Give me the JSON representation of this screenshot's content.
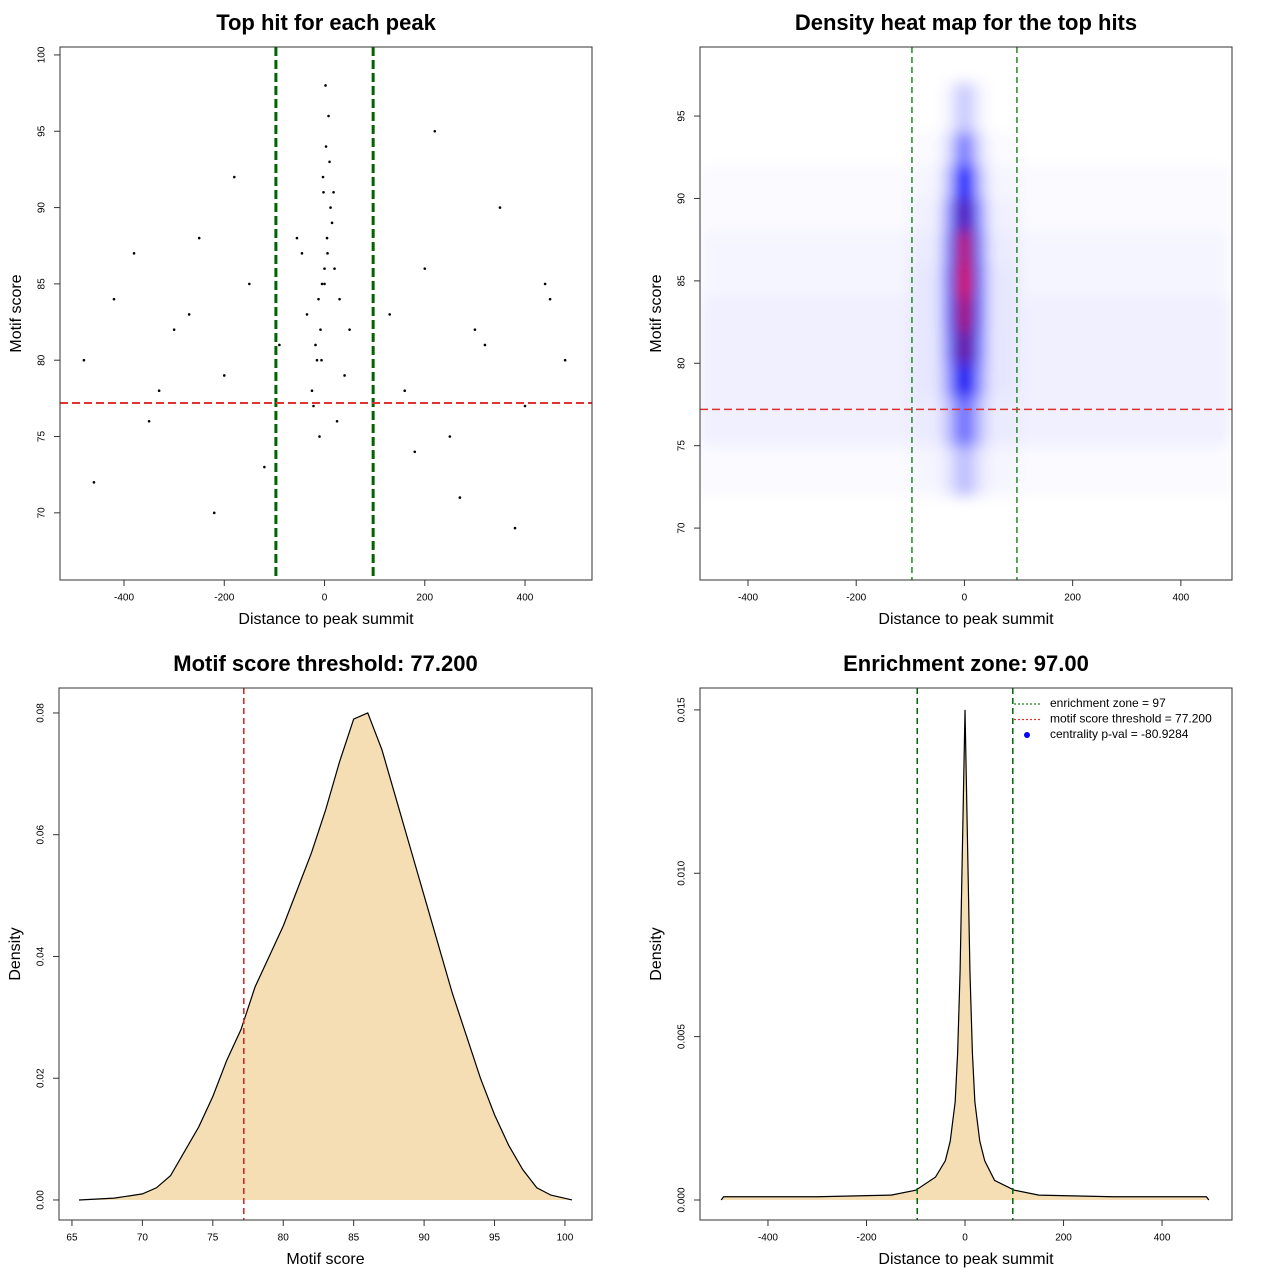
{
  "chart_data": [
    {
      "type": "scatter",
      "title": "Top hit for each peak",
      "xlabel": "Distance to peak summit",
      "ylabel": "Motif score",
      "xlim": [
        -527.7,
        533.6
      ],
      "ylim": [
        65.6,
        100.52
      ],
      "xticks": [
        -400,
        -200,
        0,
        200,
        400
      ],
      "yticks": [
        70,
        75,
        80,
        85,
        90,
        95,
        100
      ],
      "color": "#000000",
      "x": [
        0,
        5,
        -8,
        12,
        -15,
        20,
        -25,
        3,
        -3,
        30,
        -35,
        8,
        -10,
        15,
        -18,
        40,
        -45,
        2,
        -2,
        25,
        -5,
        10,
        -12,
        50,
        -55,
        6,
        -6,
        18,
        -22,
        0,
        -480,
        -420,
        -350,
        -300,
        -250,
        -200,
        -150,
        -120,
        -90,
        130,
        160,
        200,
        250,
        300,
        350,
        400,
        450,
        480,
        -460,
        -380,
        -220,
        -180,
        180,
        220,
        320,
        380,
        440,
        -330,
        -270,
        270
      ],
      "y": [
        85,
        88,
        82,
        90,
        80,
        86,
        78,
        94,
        92,
        84,
        83,
        96,
        75,
        89,
        81,
        79,
        87,
        98,
        91,
        76,
        85,
        93,
        84,
        82,
        88,
        87,
        80,
        91,
        77,
        86,
        80,
        84,
        76,
        82,
        88,
        79,
        85,
        73,
        81,
        83,
        78,
        86,
        75,
        82,
        90,
        77,
        84,
        80,
        72,
        87,
        70,
        92,
        74,
        95,
        81,
        69,
        85,
        78,
        83,
        71
      ],
      "vlines": [
        {
          "value": -97,
          "color": "#006400"
        },
        {
          "value": 97,
          "color": "#006400"
        }
      ],
      "hlines": [
        {
          "value": 77.2,
          "color": "#e03030"
        }
      ]
    },
    {
      "type": "heatmap",
      "title": "Density heat map for the top hits",
      "xlabel": "Distance to peak summit",
      "ylabel": "Motif score",
      "xlim": [
        -488.7,
        494.5
      ],
      "ylim": [
        66.85,
        99.19
      ],
      "xticks": [
        -400,
        -200,
        0,
        200,
        400
      ],
      "yticks": [
        70,
        75,
        80,
        85,
        90,
        95
      ],
      "colors": [
        "#ffffff",
        "#0000ff",
        "#ff0000"
      ],
      "x_edges": [
        -490,
        -100,
        -40,
        -20,
        -8,
        8,
        20,
        40,
        100,
        490
      ],
      "y_edges": [
        72,
        75,
        78,
        80,
        82,
        84,
        86,
        88,
        90,
        92,
        94,
        97
      ],
      "z": [
        [
          0.01,
          0.02,
          0.05,
          0.1,
          0.15,
          0.1,
          0.05,
          0.02,
          0.01
        ],
        [
          0.03,
          0.04,
          0.12,
          0.25,
          0.3,
          0.25,
          0.12,
          0.04,
          0.03
        ],
        [
          0.03,
          0.05,
          0.2,
          0.45,
          0.55,
          0.45,
          0.2,
          0.05,
          0.03
        ],
        [
          0.03,
          0.05,
          0.25,
          0.6,
          0.75,
          0.6,
          0.25,
          0.05,
          0.03
        ],
        [
          0.03,
          0.05,
          0.28,
          0.65,
          0.9,
          0.65,
          0.28,
          0.05,
          0.03
        ],
        [
          0.02,
          0.05,
          0.28,
          0.7,
          1.0,
          0.7,
          0.28,
          0.05,
          0.02
        ],
        [
          0.02,
          0.04,
          0.25,
          0.65,
          0.95,
          0.65,
          0.25,
          0.04,
          0.02
        ],
        [
          0.01,
          0.03,
          0.2,
          0.55,
          0.7,
          0.55,
          0.2,
          0.03,
          0.01
        ],
        [
          0.01,
          0.02,
          0.12,
          0.4,
          0.5,
          0.4,
          0.12,
          0.02,
          0.01
        ],
        [
          0,
          0.01,
          0.06,
          0.2,
          0.3,
          0.2,
          0.06,
          0.01,
          0
        ],
        [
          0,
          0,
          0.02,
          0.08,
          0.12,
          0.08,
          0.02,
          0,
          0
        ]
      ],
      "vlines": [
        {
          "value": -97,
          "color": "#228b22"
        },
        {
          "value": 97,
          "color": "#228b22"
        }
      ],
      "hlines": [
        {
          "value": 77.2,
          "color": "#e03030"
        }
      ]
    },
    {
      "type": "area",
      "title": "Motif score threshold: 77.200",
      "xlabel": "Motif score",
      "ylabel": "Density",
      "xlim": [
        64.08,
        101.92
      ],
      "ylim": [
        -0.00329,
        0.0841
      ],
      "xticks": [
        65,
        70,
        75,
        80,
        85,
        90,
        95,
        100
      ],
      "yticks": [
        {
          "value": 0,
          "label": "0.00"
        },
        {
          "value": 0.02,
          "label": "0.02"
        },
        {
          "value": 0.04,
          "label": "0.04"
        },
        {
          "value": 0.06,
          "label": "0.06"
        },
        {
          "value": 0.08,
          "label": "0.08"
        }
      ],
      "color": "#f5deb3",
      "x": [
        65.5,
        68,
        70,
        71,
        72,
        73,
        74,
        75,
        76,
        77,
        78,
        79,
        80,
        81,
        82,
        83,
        84,
        85,
        86,
        87,
        88,
        89,
        90,
        91,
        92,
        93,
        94,
        95,
        96,
        97,
        98,
        99,
        100.5
      ],
      "values": [
        0,
        0.0003,
        0.001,
        0.002,
        0.004,
        0.008,
        0.012,
        0.017,
        0.023,
        0.028,
        0.035,
        0.04,
        0.045,
        0.051,
        0.057,
        0.064,
        0.072,
        0.079,
        0.08,
        0.074,
        0.066,
        0.058,
        0.05,
        0.042,
        0.034,
        0.027,
        0.02,
        0.014,
        0.009,
        0.005,
        0.002,
        0.0008,
        0
      ],
      "vlines": [
        {
          "value": 77.2,
          "color": "#d02020"
        }
      ]
    },
    {
      "type": "area",
      "title": "Enrichment zone: 97.00",
      "xlabel": "Distance to peak summit",
      "ylabel": "Density",
      "xlim": [
        -538,
        542
      ],
      "ylim": [
        -0.000612,
        0.01567
      ],
      "xticks": [
        -400,
        -200,
        0,
        200,
        400
      ],
      "yticks": [
        {
          "value": 0,
          "label": "0.000"
        },
        {
          "value": 0.005,
          "label": "0.005"
        },
        {
          "value": 0.01,
          "label": "0.010"
        },
        {
          "value": 0.015,
          "label": "0.015"
        }
      ],
      "color": "#f5deb3",
      "x": [
        -495,
        -490,
        -300,
        -150,
        -100,
        -60,
        -40,
        -30,
        -20,
        -15,
        -10,
        -5,
        0,
        5,
        10,
        15,
        20,
        30,
        40,
        60,
        100,
        150,
        300,
        490,
        495
      ],
      "values": [
        0,
        0.0001,
        0.0001,
        0.00015,
        0.0003,
        0.0007,
        0.0012,
        0.0018,
        0.003,
        0.0045,
        0.007,
        0.011,
        0.015,
        0.011,
        0.007,
        0.0045,
        0.003,
        0.0018,
        0.0012,
        0.0006,
        0.0003,
        0.00015,
        0.0001,
        0.0001,
        0
      ],
      "vlines": [
        {
          "value": -97,
          "color": "#006400"
        },
        {
          "value": 97,
          "color": "#006400"
        }
      ],
      "legend": [
        {
          "label": "enrichment zone = 97",
          "color": "#228b22",
          "style": "dotted"
        },
        {
          "label": "motif score threshold = 77.200",
          "color": "#e03030",
          "style": "dotted"
        },
        {
          "label": "centrality p-val = -80.9284",
          "color": "#0000ff",
          "style": "point"
        }
      ]
    }
  ]
}
